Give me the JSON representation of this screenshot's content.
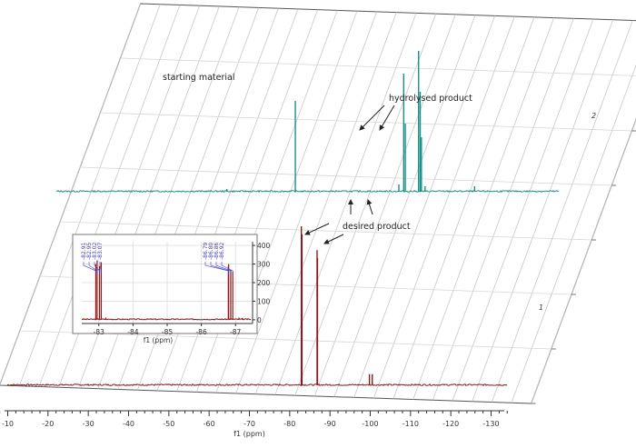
{
  "chart_data": {
    "type": "line",
    "subtype": "stacked-nmr-spectra",
    "xlabel": "f1 (ppm)",
    "x_ticks": [
      -10,
      -20,
      -30,
      -40,
      -50,
      -60,
      -70,
      -80,
      -90,
      -100,
      -110,
      -120,
      -130
    ],
    "xlim": [
      -8,
      -135
    ],
    "grid": true,
    "series": [
      {
        "name": "2",
        "color": "#1a8f8a",
        "peaks": [
          {
            "x": -69.0,
            "h": 1.0
          },
          {
            "x": -95.9,
            "h": 1.3
          },
          {
            "x": -96.3,
            "h": 0.75
          },
          {
            "x": -99.6,
            "h": 1.55
          },
          {
            "x": -100.0,
            "h": 1.1
          },
          {
            "x": -100.3,
            "h": 0.6
          },
          {
            "x": -94.7,
            "h": 0.08
          },
          {
            "x": -101.2,
            "h": 0.06
          },
          {
            "x": -113.5,
            "h": 0.06
          },
          {
            "x": -52.0,
            "h": 0.03
          }
        ]
      },
      {
        "name": "1",
        "color": "#8b1a1a",
        "peaks": [
          {
            "x": -82.9,
            "h": 1.0
          },
          {
            "x": -83.05,
            "h": 0.95
          },
          {
            "x": -83.0,
            "h": 0.6
          },
          {
            "x": -86.8,
            "h": 0.85
          },
          {
            "x": -86.9,
            "h": 0.8
          },
          {
            "x": -99.8,
            "h": 0.07
          },
          {
            "x": -100.5,
            "h": 0.07
          }
        ]
      }
    ],
    "inset": {
      "type": "line",
      "xlabel": "f1 (ppm)",
      "x_ticks": [
        "-83",
        "-84",
        "-85",
        "-86",
        "-87"
      ],
      "x_values": [
        -83,
        -84,
        -85,
        -86,
        -87
      ],
      "xlim": [
        -82.5,
        -87.5
      ],
      "y_ticks": [
        "400",
        "300",
        "200",
        "100",
        "0"
      ],
      "y_values": [
        400,
        300,
        200,
        100,
        0
      ],
      "ylim": [
        -20,
        420
      ],
      "color": "#8b1a1a",
      "label_color": "#3a3ac8",
      "peak_labels": [
        "-82.91",
        "-82.95",
        "-83.02",
        "-83.07",
        "-86.79",
        "-86.80",
        "-86.86",
        "-86.92"
      ],
      "peaks": [
        {
          "x": -82.91,
          "y": 300
        },
        {
          "x": -82.95,
          "y": 320
        },
        {
          "x": -83.02,
          "y": 290
        },
        {
          "x": -83.07,
          "y": 310
        },
        {
          "x": -86.79,
          "y": 290
        },
        {
          "x": -86.8,
          "y": 300
        },
        {
          "x": -86.86,
          "y": 270
        },
        {
          "x": -86.92,
          "y": 260
        },
        {
          "x": -83.2,
          "y": 12
        },
        {
          "x": -87.1,
          "y": 12
        },
        {
          "x": -87.2,
          "y": 10
        }
      ]
    },
    "annotations": [
      {
        "text": "starting material"
      },
      {
        "text": "hydrolysed product"
      },
      {
        "text": "desired product"
      }
    ],
    "trace_labels": [
      "2",
      "1"
    ]
  }
}
